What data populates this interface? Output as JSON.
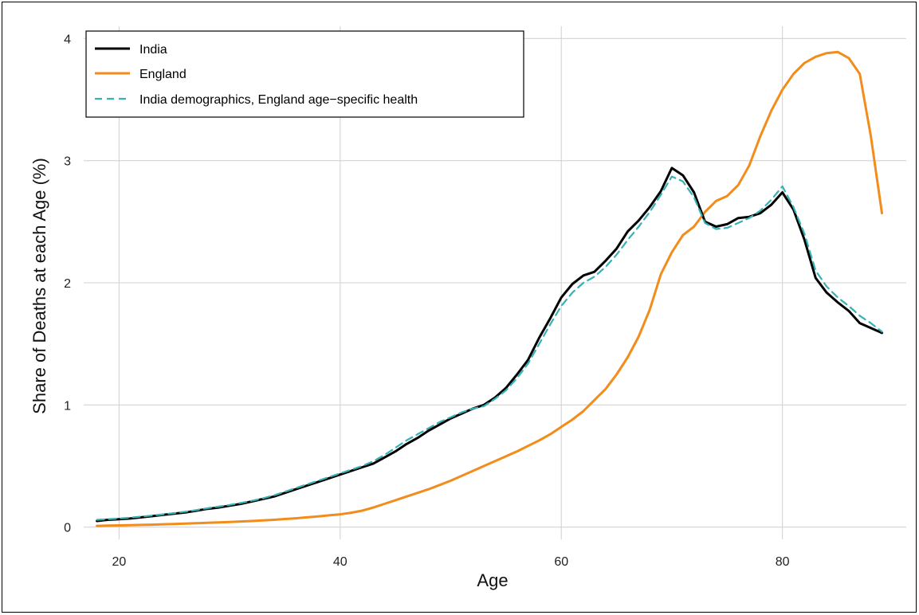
{
  "chart_data": {
    "type": "line",
    "xlabel": "Age",
    "ylabel": "Share of Deaths at each Age (%)",
    "xlim": [
      16.8,
      91.2
    ],
    "ylim": [
      -0.1,
      4.1
    ],
    "x_ticks": [
      20,
      40,
      60,
      80
    ],
    "y_ticks": [
      0,
      1,
      2,
      3,
      4
    ],
    "grid": true,
    "legend_position": "top-left",
    "x": [
      18,
      19,
      20,
      21,
      22,
      23,
      24,
      25,
      26,
      27,
      28,
      29,
      30,
      31,
      32,
      33,
      34,
      35,
      36,
      37,
      38,
      39,
      40,
      41,
      42,
      43,
      44,
      45,
      46,
      47,
      48,
      49,
      50,
      51,
      52,
      53,
      54,
      55,
      56,
      57,
      58,
      59,
      60,
      61,
      62,
      63,
      64,
      65,
      66,
      67,
      68,
      69,
      70,
      71,
      72,
      73,
      74,
      75,
      76,
      77,
      78,
      79,
      80,
      81,
      82,
      83,
      84,
      85,
      86,
      87,
      88,
      89
    ],
    "series": [
      {
        "name": "India",
        "color": "#000000",
        "dash": "solid",
        "values": [
          0.05,
          0.06,
          0.065,
          0.07,
          0.08,
          0.09,
          0.1,
          0.11,
          0.12,
          0.135,
          0.15,
          0.16,
          0.175,
          0.19,
          0.21,
          0.23,
          0.25,
          0.28,
          0.31,
          0.34,
          0.37,
          0.4,
          0.43,
          0.46,
          0.49,
          0.52,
          0.57,
          0.62,
          0.68,
          0.73,
          0.79,
          0.84,
          0.89,
          0.93,
          0.97,
          1.0,
          1.06,
          1.14,
          1.25,
          1.37,
          1.55,
          1.71,
          1.88,
          1.99,
          2.06,
          2.09,
          2.18,
          2.28,
          2.42,
          2.51,
          2.62,
          2.75,
          2.94,
          2.88,
          2.74,
          2.5,
          2.46,
          2.48,
          2.53,
          2.54,
          2.57,
          2.64,
          2.74,
          2.6,
          2.35,
          2.04,
          1.92,
          1.84,
          1.77,
          1.67,
          1.63,
          1.59
        ]
      },
      {
        "name": "England",
        "color": "#f28c1a",
        "dash": "solid",
        "values": [
          0.01,
          0.012,
          0.014,
          0.016,
          0.018,
          0.02,
          0.023,
          0.026,
          0.029,
          0.032,
          0.035,
          0.038,
          0.042,
          0.046,
          0.05,
          0.055,
          0.06,
          0.066,
          0.072,
          0.08,
          0.088,
          0.096,
          0.105,
          0.118,
          0.135,
          0.16,
          0.19,
          0.22,
          0.25,
          0.28,
          0.31,
          0.345,
          0.38,
          0.42,
          0.46,
          0.5,
          0.54,
          0.58,
          0.62,
          0.665,
          0.71,
          0.76,
          0.82,
          0.88,
          0.95,
          1.04,
          1.13,
          1.25,
          1.39,
          1.56,
          1.78,
          2.07,
          2.25,
          2.39,
          2.46,
          2.58,
          2.67,
          2.71,
          2.8,
          2.96,
          3.2,
          3.41,
          3.58,
          3.71,
          3.8,
          3.85,
          3.88,
          3.89,
          3.84,
          3.71,
          3.2,
          2.57
        ]
      },
      {
        "name": "India demographics, England age−specific health",
        "color": "#36b1b5",
        "dash": "dashed",
        "values": [
          0.06,
          0.065,
          0.07,
          0.078,
          0.086,
          0.095,
          0.105,
          0.115,
          0.126,
          0.14,
          0.155,
          0.168,
          0.182,
          0.198,
          0.215,
          0.235,
          0.26,
          0.29,
          0.32,
          0.35,
          0.38,
          0.41,
          0.44,
          0.47,
          0.5,
          0.54,
          0.59,
          0.65,
          0.71,
          0.76,
          0.81,
          0.86,
          0.9,
          0.94,
          0.97,
          0.99,
          1.05,
          1.12,
          1.22,
          1.34,
          1.5,
          1.66,
          1.81,
          1.92,
          2.0,
          2.05,
          2.13,
          2.23,
          2.35,
          2.46,
          2.58,
          2.72,
          2.87,
          2.83,
          2.7,
          2.49,
          2.44,
          2.45,
          2.49,
          2.53,
          2.59,
          2.68,
          2.79,
          2.62,
          2.4,
          2.1,
          1.97,
          1.88,
          1.81,
          1.73,
          1.67,
          1.6
        ]
      }
    ]
  }
}
